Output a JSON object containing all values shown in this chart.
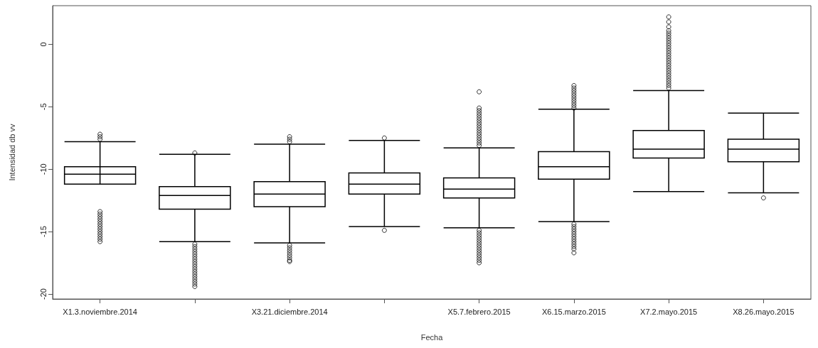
{
  "chart_data": {
    "type": "box",
    "xlabel": "Fecha",
    "ylabel": "Intensidad db vv",
    "categories": [
      "X1.3.noviembre.2014",
      null,
      "X3.21.diciembre.2014",
      null,
      "X5.7.febrero.2015",
      "X6.15.marzo.2015",
      "X7.2.mayo.2015",
      "X8.26.mayo.2015"
    ],
    "boxes": [
      {
        "low": -7.8,
        "q1": -11.2,
        "median": -10.4,
        "q3": -9.8,
        "high": -7.8,
        "outliers": [
          -7.2,
          -7.4,
          -7.6,
          -13.4,
          -13.6,
          -13.8,
          -14.0,
          -14.2,
          -14.4,
          -14.6,
          -14.8,
          -15.0,
          -15.2,
          -15.4,
          -15.6,
          -15.8
        ]
      },
      {
        "low": -15.8,
        "q1": -13.2,
        "median": -12.1,
        "q3": -11.4,
        "high": -8.8,
        "outliers": [
          -8.7,
          -16.0,
          -16.2,
          -16.4,
          -16.6,
          -16.8,
          -17.0,
          -17.2,
          -17.4,
          -17.6,
          -17.8,
          -18.0,
          -18.2,
          -18.4,
          -18.6,
          -18.8,
          -19.0,
          -19.2,
          -19.4
        ]
      },
      {
        "low": -15.9,
        "q1": -13.0,
        "median": -12.0,
        "q3": -11.0,
        "high": -8.0,
        "outliers": [
          -7.4,
          -7.6,
          -7.8,
          -16.1,
          -16.3,
          -16.5,
          -16.7,
          -16.9,
          -17.1,
          -17.3,
          -17.4
        ]
      },
      {
        "low": -14.6,
        "q1": -12.0,
        "median": -11.2,
        "q3": -10.3,
        "high": -7.7,
        "outliers": [
          -7.5,
          -14.9
        ]
      },
      {
        "low": -14.7,
        "q1": -12.3,
        "median": -11.6,
        "q3": -10.7,
        "high": -8.3,
        "outliers": [
          -3.8,
          -5.1,
          -5.3,
          -5.5,
          -5.7,
          -5.9,
          -6.1,
          -6.3,
          -6.5,
          -6.7,
          -6.9,
          -7.1,
          -7.3,
          -7.5,
          -7.7,
          -7.9,
          -8.1,
          -14.9,
          -15.1,
          -15.3,
          -15.5,
          -15.7,
          -15.9,
          -16.1,
          -16.3,
          -16.5,
          -16.7,
          -16.9,
          -17.1,
          -17.3,
          -17.5
        ]
      },
      {
        "low": -14.2,
        "q1": -10.8,
        "median": -9.8,
        "q3": -8.6,
        "high": -5.2,
        "outliers": [
          -3.3,
          -3.5,
          -3.7,
          -3.9,
          -4.1,
          -4.3,
          -4.5,
          -4.7,
          -4.9,
          -5.1,
          -14.4,
          -14.6,
          -14.8,
          -15.0,
          -15.2,
          -15.4,
          -15.6,
          -15.8,
          -16.0,
          -16.2,
          -16.4,
          -16.7
        ]
      },
      {
        "low": -11.8,
        "q1": -9.1,
        "median": -8.4,
        "q3": -6.9,
        "high": -3.7,
        "outliers": [
          2.2,
          1.8,
          1.4,
          1.1,
          0.9,
          0.7,
          0.5,
          0.3,
          0.1,
          -0.1,
          -0.3,
          -0.5,
          -0.7,
          -0.9,
          -1.1,
          -1.3,
          -1.5,
          -1.7,
          -1.9,
          -2.1,
          -2.3,
          -2.5,
          -2.7,
          -2.9,
          -3.1,
          -3.3,
          -3.5
        ]
      },
      {
        "low": -11.9,
        "q1": -9.4,
        "median": -8.4,
        "q3": -7.6,
        "high": -5.5,
        "outliers": [
          -12.3
        ]
      }
    ],
    "ylim": [
      -20.4,
      3.1
    ],
    "yticks": [
      -20,
      -15,
      -10,
      -5,
      0
    ]
  }
}
